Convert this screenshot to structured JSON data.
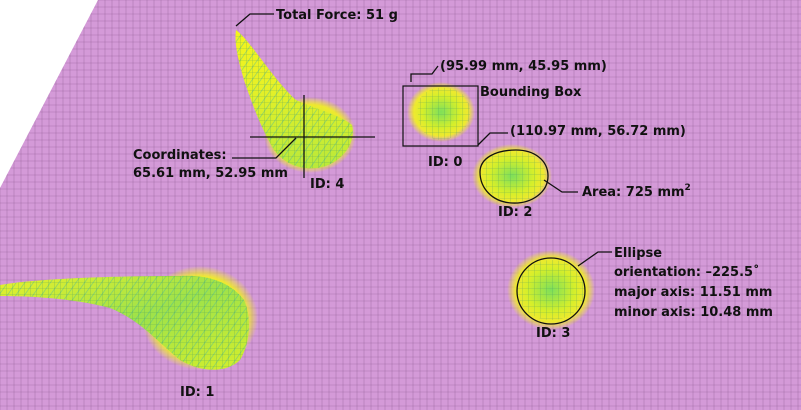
{
  "colors": {
    "surface": "#d49ad8",
    "grid": "#8a5a8f",
    "blob_yellow": "#f2f21e",
    "blob_green": "#7ee05a",
    "blob_teal": "#3fb6a6",
    "text": "#111111"
  },
  "annotations": {
    "total_force": "Total Force: 51 g",
    "bbox_top_left": "(95.99 mm, 45.95 mm)",
    "bbox_title": "Bounding Box",
    "bbox_bottom_right": "(110.97 mm, 56.72 mm)",
    "coordinates_title": "Coordinates:",
    "coordinates_value": "65.61 mm, 52.95 mm",
    "area_prefix": "Area: 725 mm",
    "area_sup": "2",
    "ellipse_title": "Ellipse",
    "ellipse_orientation": "orientation: –225.5˚",
    "ellipse_major": "major axis: 11.51 mm",
    "ellipse_minor": "minor axis: 10.48 mm"
  },
  "blobs": [
    {
      "id_label": "ID: 0",
      "icon": "pressure-blob"
    },
    {
      "id_label": "ID: 1",
      "icon": "pressure-blob"
    },
    {
      "id_label": "ID: 2",
      "icon": "pressure-blob"
    },
    {
      "id_label": "ID: 3",
      "icon": "pressure-blob"
    },
    {
      "id_label": "ID: 4",
      "icon": "pressure-blob"
    }
  ]
}
